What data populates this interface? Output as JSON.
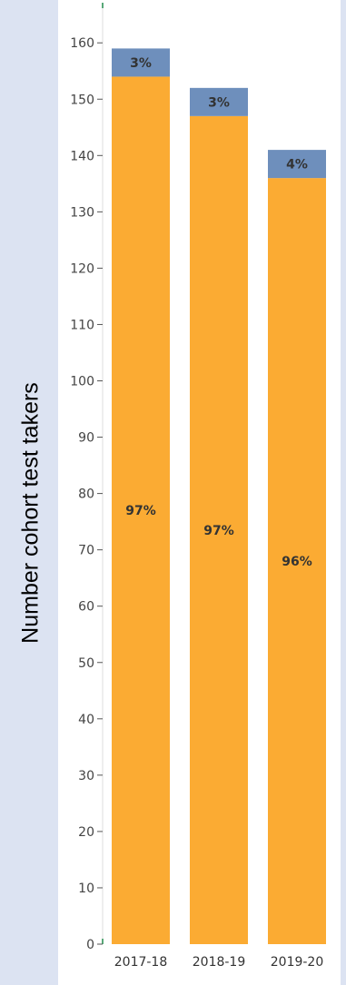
{
  "chart_data": {
    "type": "bar",
    "stacked": true,
    "ylabel": "Number cohort test takers",
    "xlabel": "",
    "title": "",
    "ylim": [
      0,
      160
    ],
    "yticks": [
      0,
      10,
      20,
      30,
      40,
      50,
      60,
      70,
      80,
      90,
      100,
      110,
      120,
      130,
      140,
      150,
      160
    ],
    "categories": [
      "2017-18",
      "2018-19",
      "2019-20"
    ],
    "series": [
      {
        "values": [
          154,
          147,
          136
        ],
        "labels": [
          "97%",
          "97%",
          "96%"
        ],
        "color": "#fbab33"
      },
      {
        "values": [
          5,
          5,
          5
        ],
        "labels": [
          "3%",
          "3%",
          "4%"
        ],
        "color": "#6e8fbc"
      }
    ],
    "grid": false,
    "legend": "none"
  }
}
